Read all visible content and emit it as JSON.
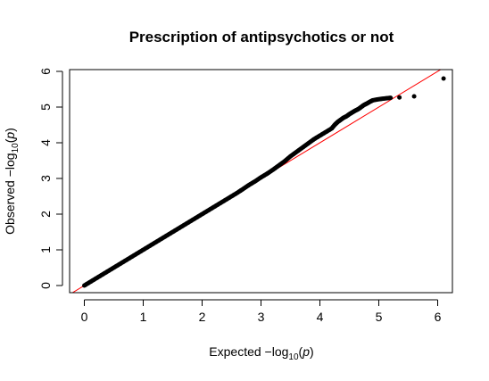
{
  "chart_data": {
    "type": "scatter",
    "title": "Prescription of antipsychotics or not",
    "xlabel": {
      "prefix": "Expected  −log",
      "subscript": "10",
      "open": "(",
      "var": "p",
      "close": ")"
    },
    "ylabel": {
      "prefix": "Observed  −log",
      "subscript": "10",
      "open": "(",
      "var": "p",
      "close": ")"
    },
    "xlim": [
      -0.25,
      6.25
    ],
    "ylim": [
      -0.2,
      6.05
    ],
    "xticks": [
      "0",
      "1",
      "2",
      "3",
      "4",
      "5",
      "6"
    ],
    "yticks": [
      "0",
      "1",
      "2",
      "3",
      "4",
      "5",
      "6"
    ],
    "grid": false,
    "reference_line": {
      "slope": 1,
      "intercept": 0,
      "color": "#ff0000"
    },
    "point_color": "#000000",
    "series": [
      {
        "x": [
          0.0,
          0.1,
          0.2,
          0.3,
          0.4,
          0.5,
          0.6,
          0.7,
          0.8,
          0.9,
          1.0,
          1.1,
          1.2,
          1.3,
          1.4,
          1.5,
          1.6,
          1.7,
          1.8,
          1.9,
          2.0,
          2.1,
          2.2,
          2.3,
          2.4,
          2.5,
          2.6,
          2.7,
          2.8,
          2.9,
          3.0,
          3.1,
          3.2,
          3.3,
          3.4,
          3.5,
          3.6,
          3.7,
          3.8,
          3.9,
          4.0,
          4.1,
          4.2,
          4.25,
          4.3,
          4.35,
          4.4,
          4.45,
          4.5,
          4.55,
          4.6,
          4.65,
          4.7,
          4.75,
          4.8,
          4.85,
          4.9,
          5.0,
          5.1,
          5.2,
          5.35,
          5.6,
          6.1
        ],
        "y": [
          0.0,
          0.1,
          0.2,
          0.3,
          0.4,
          0.5,
          0.6,
          0.7,
          0.8,
          0.9,
          1.0,
          1.1,
          1.2,
          1.3,
          1.4,
          1.5,
          1.6,
          1.7,
          1.8,
          1.9,
          2.0,
          2.1,
          2.2,
          2.3,
          2.4,
          2.5,
          2.6,
          2.71,
          2.82,
          2.92,
          3.03,
          3.13,
          3.24,
          3.36,
          3.48,
          3.62,
          3.74,
          3.86,
          3.98,
          4.1,
          4.2,
          4.3,
          4.4,
          4.5,
          4.58,
          4.64,
          4.7,
          4.74,
          4.8,
          4.85,
          4.9,
          4.94,
          5.0,
          5.06,
          5.1,
          5.15,
          5.19,
          5.22,
          5.24,
          5.26,
          5.27,
          5.3,
          5.8
        ]
      }
    ]
  }
}
